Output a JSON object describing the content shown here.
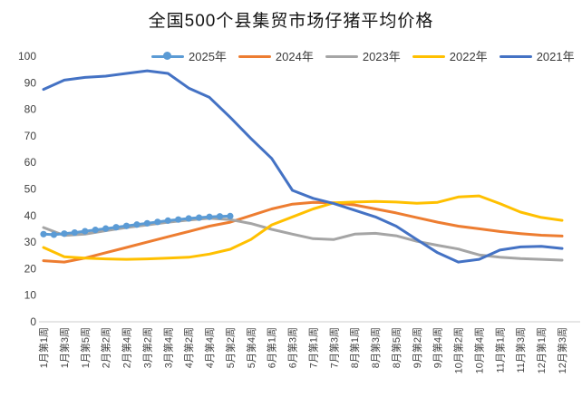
{
  "title": "全国500个县集贸市场仔猪平均价格",
  "chart_data": {
    "type": "line",
    "title": "全国500个县集贸市场仔猪平均价格",
    "ylim": [
      0,
      100
    ],
    "y_ticks": [
      0,
      10,
      20,
      30,
      40,
      50,
      60,
      70,
      80,
      90,
      100
    ],
    "grid": false,
    "legend_position": "top",
    "x_label_rotation": -90,
    "x_tick_labels": [
      "1月第1周",
      "1月第3周",
      "1月第5周",
      "2月第2周",
      "2月第4周",
      "3月第2周",
      "3月第4周",
      "4月第2周",
      "4月第4周",
      "5月第2周",
      "5月第4周",
      "6月第1周",
      "6月第3周",
      "7月第1周",
      "7月第3周",
      "8月第1周",
      "8月第3周",
      "8月第5周",
      "9月第2周",
      "9月第4周",
      "10月第2周",
      "10月第4周",
      "11月第1周",
      "11月第3周",
      "12月第1周",
      "12月第3周"
    ],
    "x_note": "tick labels are every 2nd week; week index 0 = 1月第1周, ticks at weeks 0,2,...,50",
    "series": [
      {
        "name": "2025年",
        "color": "#5B9BD5",
        "marker": "circle",
        "week_step": 1,
        "start_week": 0,
        "values": [
          33,
          32.8,
          33.2,
          33.6,
          34.1,
          34.6,
          35.1,
          35.6,
          36.1,
          36.6,
          37.1,
          37.6,
          38.1,
          38.5,
          38.9,
          39.2,
          39.5,
          39.7,
          39.8
        ]
      },
      {
        "name": "2024年",
        "color": "#ED7D31",
        "marker": "none",
        "week_step": 2,
        "start_week": 0,
        "values": [
          23,
          22.5,
          24,
          26,
          28,
          30,
          32,
          34,
          36,
          37.5,
          40,
          42.5,
          44.3,
          45,
          44.8,
          44,
          42.5,
          41,
          39.2,
          37.5,
          36,
          35,
          34,
          33.2,
          32.6,
          32.3
        ]
      },
      {
        "name": "2023年",
        "color": "#A5A5A5",
        "marker": "none",
        "week_step": 2,
        "start_week": 0,
        "values": [
          35.5,
          32.5,
          33,
          34.3,
          35.5,
          36.5,
          37.5,
          38.3,
          39,
          38.5,
          37,
          34.8,
          33,
          31.3,
          31,
          33,
          33.3,
          32.4,
          30.3,
          28.8,
          27.4,
          25.2,
          24.3,
          23.8,
          23.5,
          23.2
        ]
      },
      {
        "name": "2022年",
        "color": "#FFC000",
        "marker": "none",
        "week_step": 2,
        "start_week": 0,
        "values": [
          28,
          24.5,
          24,
          23.7,
          23.5,
          23.7,
          24,
          24.3,
          25.5,
          27.3,
          31,
          36.5,
          39.5,
          42.5,
          44.8,
          45.1,
          45.3,
          45.1,
          44.6,
          45,
          47,
          47.4,
          44.5,
          41.3,
          39.3,
          38.2
        ]
      },
      {
        "name": "2021年",
        "color": "#4472C4",
        "marker": "none",
        "week_step": 2,
        "start_week": 0,
        "values": [
          87.5,
          91,
          92,
          92.5,
          93.5,
          94.5,
          93.5,
          88,
          84.5,
          77,
          69,
          61.5,
          49.5,
          46.5,
          44.5,
          42,
          39.5,
          36,
          31,
          26,
          22.5,
          23.5,
          27,
          28.2,
          28.4,
          27.6
        ]
      }
    ]
  }
}
